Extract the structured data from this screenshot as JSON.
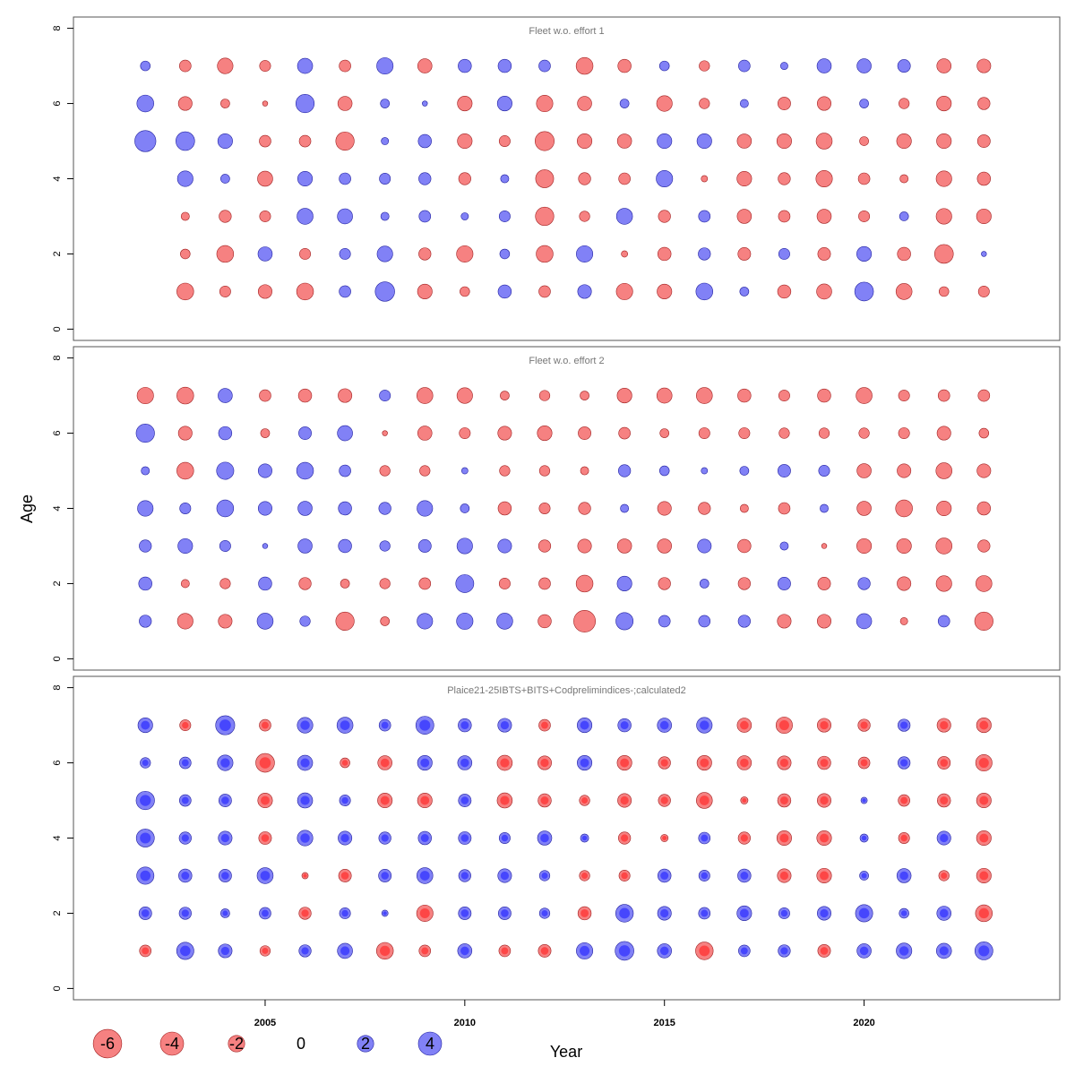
{
  "chart_data": {
    "type": "scatter",
    "subtype": "bubble",
    "xlabel": "Year",
    "ylabel": "Age",
    "x_ticks": [
      "2005",
      "2010",
      "2015",
      "2020"
    ],
    "y_ticks": [
      "0",
      "2",
      "4",
      "6",
      "8"
    ],
    "xlim": [
      2000.2,
      2024.9
    ],
    "ylim": [
      -0.3,
      8.3
    ],
    "colors": {
      "positive": "#7373f5",
      "negative": "#f57373",
      "positive_overlay": "#3333ff",
      "negative_overlay": "#ff3333",
      "frame": "#555555",
      "title": "#777777"
    },
    "years": [
      2002,
      2003,
      2004,
      2005,
      2006,
      2007,
      2008,
      2009,
      2010,
      2011,
      2012,
      2013,
      2014,
      2015,
      2016,
      2017,
      2018,
      2019,
      2020,
      2021,
      2022,
      2023
    ],
    "legend": [
      {
        "label": "-6",
        "value": -6
      },
      {
        "label": "-4",
        "value": -4
      },
      {
        "label": "-2",
        "value": -2
      },
      {
        "label": "0",
        "value": 0
      },
      {
        "label": "2",
        "value": 2
      },
      {
        "label": "4",
        "value": 4
      }
    ],
    "panels": [
      {
        "title": "Fleet w.o. effort 1",
        "ages": [
          7,
          6,
          5,
          4,
          3,
          2,
          1
        ],
        "residuals": [
          [
            0.7,
            -1.0,
            -1.8,
            -0.9,
            1.7,
            -1.0,
            2.0,
            -1.5,
            1.3,
            1.3,
            1.0,
            -2.1,
            -1.3,
            0.7,
            -0.8,
            1.0,
            0.4,
            1.5,
            1.5,
            1.2,
            -1.5,
            -1.4
          ],
          [
            2.1,
            -1.4,
            -0.6,
            -0.2,
            2.5,
            -1.5,
            0.6,
            0.2,
            -1.6,
            1.6,
            -2.0,
            -1.5,
            0.6,
            -1.8,
            -0.8,
            0.5,
            -1.2,
            -1.4,
            0.6,
            -0.8,
            -1.6,
            -1.1
          ],
          [
            3.3,
            2.6,
            1.6,
            -1.0,
            -1.0,
            -2.5,
            0.4,
            1.3,
            -1.6,
            -0.9,
            -2.7,
            -1.6,
            -1.5,
            1.6,
            1.6,
            -1.5,
            -1.6,
            -1.9,
            -0.6,
            -1.6,
            -1.6,
            -1.2
          ],
          [
            null,
            1.8,
            0.6,
            -1.7,
            1.6,
            1.0,
            0.9,
            1.1,
            -1.1,
            0.5,
            -2.4,
            -1.1,
            -1.0,
            2.0,
            -0.3,
            -1.6,
            -1.1,
            -2.0,
            -1.0,
            -0.5,
            -1.8,
            -1.3
          ],
          [
            null,
            -0.5,
            -1.1,
            -0.9,
            1.9,
            1.7,
            0.5,
            1.0,
            0.4,
            0.9,
            -2.5,
            -0.8,
            1.9,
            -1.1,
            1.0,
            -1.5,
            -1.0,
            -1.5,
            -0.9,
            0.6,
            -1.8,
            -1.6
          ],
          [
            null,
            -0.7,
            -2.1,
            1.5,
            -0.9,
            0.9,
            1.8,
            -1.1,
            -2.0,
            0.7,
            -2.1,
            2.0,
            -0.3,
            -1.3,
            1.1,
            -1.2,
            0.9,
            -1.2,
            1.6,
            -1.3,
            -2.6,
            0.2
          ],
          [
            null,
            -2.1,
            -0.9,
            -1.4,
            -2.1,
            1.0,
            2.8,
            -1.6,
            -0.7,
            1.3,
            -1.0,
            1.4,
            -2.0,
            -1.6,
            2.1,
            0.6,
            -1.3,
            -1.7,
            2.6,
            -1.9,
            -0.7,
            -0.9
          ]
        ]
      },
      {
        "title": "Fleet w.o. effort 2",
        "ages": [
          7,
          6,
          5,
          4,
          3,
          2,
          1
        ],
        "residuals": [
          [
            -2.0,
            -2.1,
            1.5,
            -1.0,
            -1.3,
            -1.4,
            0.9,
            -1.9,
            -1.8,
            -0.6,
            -0.8,
            -0.6,
            -1.6,
            -1.7,
            -1.9,
            -1.3,
            -0.9,
            -1.3,
            -1.9,
            -0.9,
            -1.0,
            -1.0
          ],
          [
            2.5,
            -1.4,
            1.3,
            -0.6,
            1.2,
            1.7,
            -0.2,
            -1.5,
            -0.9,
            -1.4,
            -1.6,
            -1.2,
            -1.0,
            -0.6,
            -0.9,
            -0.9,
            -0.8,
            -0.8,
            -0.8,
            -0.9,
            -1.4,
            -0.7
          ],
          [
            0.5,
            -2.1,
            2.2,
            1.4,
            2.1,
            1.0,
            -0.8,
            -0.8,
            0.3,
            -0.8,
            -0.8,
            -0.5,
            1.1,
            0.7,
            0.3,
            0.6,
            1.2,
            0.9,
            -1.5,
            -1.4,
            -1.9,
            -1.4
          ],
          [
            1.8,
            0.9,
            2.1,
            1.4,
            1.5,
            1.3,
            1.1,
            1.8,
            0.6,
            -1.3,
            -0.9,
            -1.1,
            0.5,
            -1.4,
            -1.1,
            -0.5,
            -1.0,
            0.5,
            -1.5,
            -2.1,
            -1.6,
            -1.3
          ],
          [
            1.1,
            1.6,
            0.9,
            0.2,
            1.5,
            1.3,
            0.8,
            1.2,
            1.8,
            1.4,
            -1.1,
            -1.4,
            -1.5,
            -1.5,
            1.4,
            -1.3,
            0.5,
            -0.2,
            -1.6,
            -1.6,
            -1.9,
            -1.1
          ],
          [
            1.3,
            -0.5,
            -0.8,
            1.3,
            -1.1,
            -0.6,
            -0.8,
            -1.0,
            2.4,
            -0.9,
            -1.0,
            -2.1,
            1.6,
            -1.1,
            0.6,
            -1.1,
            1.2,
            -1.2,
            1.1,
            -1.4,
            -1.8,
            -1.9
          ],
          [
            1.1,
            -1.8,
            -1.4,
            1.9,
            0.8,
            -2.5,
            -0.6,
            1.8,
            2.0,
            1.9,
            -1.3,
            -3.5,
            2.2,
            1.0,
            1.0,
            1.1,
            -1.4,
            -1.4,
            1.7,
            -0.4,
            1.0,
            -2.5
          ]
        ]
      },
      {
        "title": "Plaice21-25IBTS+BITS+Codprelimindices-;calculated2",
        "ages": [
          7,
          6,
          5,
          4,
          3,
          2,
          1
        ],
        "overlay": true,
        "residuals": [
          [
            1.6,
            -0.9,
            2.7,
            -1.0,
            1.8,
            1.9,
            1.0,
            2.4,
            1.3,
            1.4,
            -1.0,
            1.6,
            1.3,
            1.5,
            1.8,
            -1.5,
            -2.0,
            -1.4,
            -1.1,
            1.1,
            -1.4,
            -1.6
          ],
          [
            0.8,
            1.0,
            1.8,
            -2.6,
            1.7,
            -0.7,
            -1.5,
            1.6,
            1.5,
            -1.7,
            -1.4,
            1.6,
            -1.6,
            -1.1,
            -1.6,
            -1.5,
            -1.4,
            -1.3,
            -1.0,
            1.1,
            -1.2,
            -2.0
          ],
          [
            2.5,
            1.0,
            1.2,
            -1.6,
            1.7,
            0.9,
            -1.6,
            -1.6,
            1.2,
            -1.7,
            -1.3,
            -0.8,
            -1.4,
            -1.1,
            -1.9,
            -0.4,
            -1.3,
            -1.4,
            0.3,
            -1.0,
            -1.3,
            -1.6
          ],
          [
            2.4,
            1.1,
            1.4,
            -1.2,
            1.8,
            1.4,
            1.1,
            1.3,
            1.2,
            0.9,
            1.5,
            0.5,
            -1.1,
            -0.4,
            1.0,
            -1.1,
            -1.6,
            -1.6,
            0.5,
            -0.9,
            1.4,
            -1.6
          ],
          [
            2.2,
            1.3,
            1.2,
            1.9,
            -0.3,
            -1.2,
            1.2,
            1.9,
            1.1,
            1.4,
            0.8,
            -0.8,
            -0.9,
            1.3,
            0.9,
            1.3,
            -1.4,
            -1.6,
            0.6,
            1.5,
            -0.8,
            -1.6
          ],
          [
            1.2,
            1.1,
            0.6,
            1.0,
            -1.1,
            0.9,
            0.3,
            -2.0,
            1.2,
            1.2,
            0.8,
            -1.3,
            2.3,
            1.4,
            1.0,
            1.6,
            0.9,
            1.4,
            2.2,
            0.7,
            1.5,
            -2.1
          ],
          [
            -1.0,
            2.2,
            1.4,
            -0.8,
            1.1,
            1.7,
            -2.1,
            -1.0,
            1.5,
            -1.0,
            -1.2,
            2.0,
            2.6,
            1.5,
            -2.3,
            1.0,
            1.1,
            -1.2,
            1.5,
            1.8,
            1.7,
            2.4
          ]
        ]
      }
    ]
  }
}
